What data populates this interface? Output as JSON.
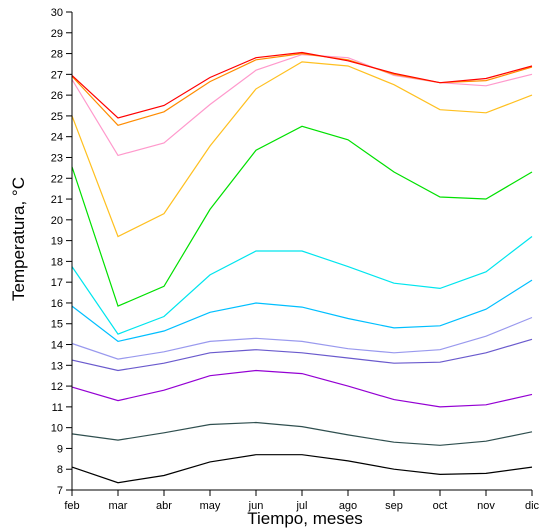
{
  "chart_data": {
    "type": "line",
    "title": "",
    "xlabel": "Tiempo, meses",
    "ylabel": "Temperatura, °C",
    "categories": [
      "feb",
      "mar",
      "abr",
      "may",
      "jun",
      "jul",
      "ago",
      "sep",
      "oct",
      "nov",
      "dic"
    ],
    "ylim": [
      7,
      30
    ],
    "yticks": [
      7,
      8,
      9,
      10,
      11,
      12,
      13,
      14,
      15,
      16,
      17,
      18,
      19,
      20,
      21,
      22,
      23,
      24,
      25,
      26,
      27,
      28,
      29,
      30
    ],
    "grid": false,
    "legend": "none",
    "series": [
      {
        "color": "#000000",
        "values": [
          8.1,
          7.35,
          7.7,
          8.35,
          8.7,
          8.7,
          8.4,
          8.0,
          7.75,
          7.8,
          8.1
        ]
      },
      {
        "color": "#2f4f4f",
        "values": [
          9.7,
          9.4,
          9.75,
          10.15,
          10.25,
          10.05,
          9.65,
          9.3,
          9.15,
          9.35,
          9.8
        ]
      },
      {
        "color": "#9400d3",
        "values": [
          11.95,
          11.3,
          11.8,
          12.5,
          12.75,
          12.6,
          12.0,
          11.35,
          11.0,
          11.1,
          11.6
        ]
      },
      {
        "color": "#6a5acd",
        "values": [
          13.25,
          12.75,
          13.1,
          13.6,
          13.75,
          13.6,
          13.35,
          13.1,
          13.15,
          13.6,
          14.25
        ]
      },
      {
        "color": "#9999ee",
        "values": [
          14.05,
          13.3,
          13.65,
          14.15,
          14.3,
          14.15,
          13.8,
          13.6,
          13.75,
          14.4,
          15.3
        ]
      },
      {
        "color": "#00bfff",
        "values": [
          15.85,
          14.15,
          14.65,
          15.55,
          16.0,
          15.8,
          15.25,
          14.8,
          14.9,
          15.7,
          17.1
        ]
      },
      {
        "color": "#00e5ee",
        "values": [
          17.75,
          14.5,
          15.35,
          17.35,
          18.5,
          18.5,
          17.75,
          16.95,
          16.7,
          17.5,
          19.2
        ]
      },
      {
        "color": "#00e000",
        "values": [
          22.55,
          15.85,
          16.8,
          20.5,
          23.35,
          24.5,
          23.85,
          22.3,
          21.1,
          21.0,
          22.3
        ]
      },
      {
        "color": "#ffc020",
        "values": [
          25.0,
          19.2,
          20.3,
          23.55,
          26.3,
          27.6,
          27.4,
          26.5,
          25.3,
          25.15,
          26.0
        ]
      },
      {
        "color": "#ff99cc",
        "values": [
          26.75,
          23.1,
          23.7,
          25.55,
          27.2,
          27.95,
          27.8,
          26.95,
          26.6,
          26.45,
          27.0
        ]
      },
      {
        "color": "#ff8c00",
        "values": [
          26.9,
          24.55,
          25.2,
          26.65,
          27.7,
          28.0,
          27.7,
          27.0,
          26.6,
          26.7,
          27.35
        ]
      },
      {
        "color": "#ff0000",
        "values": [
          26.95,
          24.9,
          25.5,
          26.85,
          27.8,
          28.05,
          27.65,
          27.05,
          26.6,
          26.8,
          27.4
        ]
      }
    ]
  }
}
